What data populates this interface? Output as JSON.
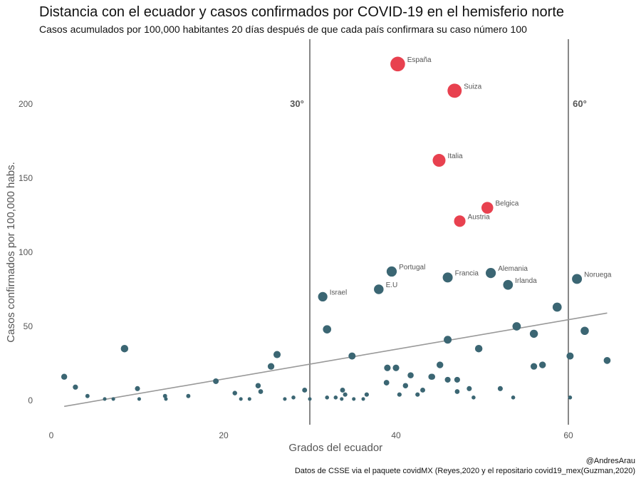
{
  "title": "Distancia con el ecuador y casos confirmados por COVID-19 en el hemisferio norte",
  "subtitle": "Casos acumulados por 100,000 habitantes 20 días después de que cada país confirmara su caso número 100",
  "caption_author": "@AndresArau",
  "caption_source": "Datos de CSSE via el paquete covidMX (Reyes,2020 y el repositario covid19_mex(Guzman,2020)",
  "colors": {
    "highlight": "#e8414f",
    "labeled": "#3b6673",
    "point": "#3b6673",
    "trend": "#999999",
    "refline": "#111111"
  },
  "chart_data": {
    "type": "scatter",
    "xlabel": "Grados del ecuador",
    "ylabel": "Casos confirmados por 100,000 habs.",
    "xlim": [
      -2,
      66
    ],
    "ylim": [
      -17,
      243
    ],
    "xticks": [
      0,
      20,
      40,
      60
    ],
    "yticks": [
      0,
      50,
      100,
      150,
      200
    ],
    "grid": false,
    "reference_lines": [
      {
        "x": 30,
        "label": "30°"
      },
      {
        "x": 60,
        "label": "60°"
      }
    ],
    "trend": {
      "x": [
        1.5,
        64.5
      ],
      "y": [
        -4,
        59
      ]
    },
    "labeled_points": [
      {
        "label": "España",
        "x": 40.2,
        "y": 227,
        "group": "high"
      },
      {
        "label": "Suiza",
        "x": 46.8,
        "y": 209,
        "group": "high"
      },
      {
        "label": "Italia",
        "x": 45,
        "y": 162,
        "group": "high"
      },
      {
        "label": "Belgica",
        "x": 50.6,
        "y": 130,
        "group": "high"
      },
      {
        "label": "Austria",
        "x": 47.4,
        "y": 121,
        "group": "high"
      },
      {
        "label": "Portugal",
        "x": 39.5,
        "y": 87,
        "group": "mid"
      },
      {
        "label": "Francia",
        "x": 46,
        "y": 83,
        "group": "mid"
      },
      {
        "label": "Alemania",
        "x": 51,
        "y": 86,
        "group": "mid"
      },
      {
        "label": "Irlanda",
        "x": 53,
        "y": 78,
        "group": "mid"
      },
      {
        "label": "Noruega",
        "x": 61,
        "y": 82,
        "group": "mid"
      },
      {
        "label": "E.U",
        "x": 38,
        "y": 75,
        "group": "mid"
      },
      {
        "label": "Israel",
        "x": 31.5,
        "y": 70,
        "group": "mid"
      }
    ],
    "points": [
      [
        1.5,
        16
      ],
      [
        2.8,
        9
      ],
      [
        4.2,
        3
      ],
      [
        6.2,
        1
      ],
      [
        7.2,
        1
      ],
      [
        8.5,
        35
      ],
      [
        10,
        8
      ],
      [
        10.2,
        1
      ],
      [
        13.2,
        3
      ],
      [
        13.3,
        1
      ],
      [
        15.9,
        3
      ],
      [
        19.1,
        13
      ],
      [
        21.3,
        5
      ],
      [
        22,
        1
      ],
      [
        23,
        1
      ],
      [
        24,
        10
      ],
      [
        24.3,
        6
      ],
      [
        25.5,
        23
      ],
      [
        26.2,
        31
      ],
      [
        27.1,
        1
      ],
      [
        28.1,
        2
      ],
      [
        29.4,
        7
      ],
      [
        30,
        1
      ],
      [
        32,
        48
      ],
      [
        32,
        2
      ],
      [
        33,
        2
      ],
      [
        33.7,
        1
      ],
      [
        33.8,
        7
      ],
      [
        34.1,
        4
      ],
      [
        34.9,
        30
      ],
      [
        35.1,
        1
      ],
      [
        36.2,
        1
      ],
      [
        36.6,
        4
      ],
      [
        38.9,
        12
      ],
      [
        39,
        22
      ],
      [
        40,
        22
      ],
      [
        40.4,
        4
      ],
      [
        41.1,
        10
      ],
      [
        41.7,
        17
      ],
      [
        42.5,
        4
      ],
      [
        43.1,
        7
      ],
      [
        44.1,
        16
      ],
      [
        44.2,
        16
      ],
      [
        45.1,
        24
      ],
      [
        46,
        14
      ],
      [
        46,
        41
      ],
      [
        47.1,
        14
      ],
      [
        47.1,
        6
      ],
      [
        48.5,
        8
      ],
      [
        49,
        2
      ],
      [
        49.6,
        35
      ],
      [
        52.1,
        8
      ],
      [
        53.6,
        2
      ],
      [
        54,
        50
      ],
      [
        56,
        45
      ],
      [
        56,
        23
      ],
      [
        57,
        24
      ],
      [
        58.7,
        63
      ],
      [
        60.2,
        30
      ],
      [
        60.2,
        2
      ],
      [
        61.9,
        47
      ],
      [
        64.5,
        27
      ]
    ]
  }
}
